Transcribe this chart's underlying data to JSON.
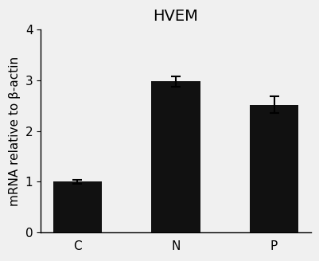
{
  "title": "HVEM",
  "categories": [
    "C",
    "N",
    "P"
  ],
  "values": [
    1.0,
    2.98,
    2.52
  ],
  "errors": [
    0.04,
    0.1,
    0.17
  ],
  "bar_color": "#111111",
  "bar_width": 0.5,
  "ylabel": "mRNA relative to β-actin",
  "ylim": [
    0,
    4
  ],
  "yticks": [
    0,
    1,
    2,
    3,
    4
  ],
  "background_color": "#f0f0f0",
  "title_fontsize": 14,
  "ylabel_fontsize": 11,
  "tick_fontsize": 11,
  "error_capsize": 4,
  "error_linewidth": 1.5
}
